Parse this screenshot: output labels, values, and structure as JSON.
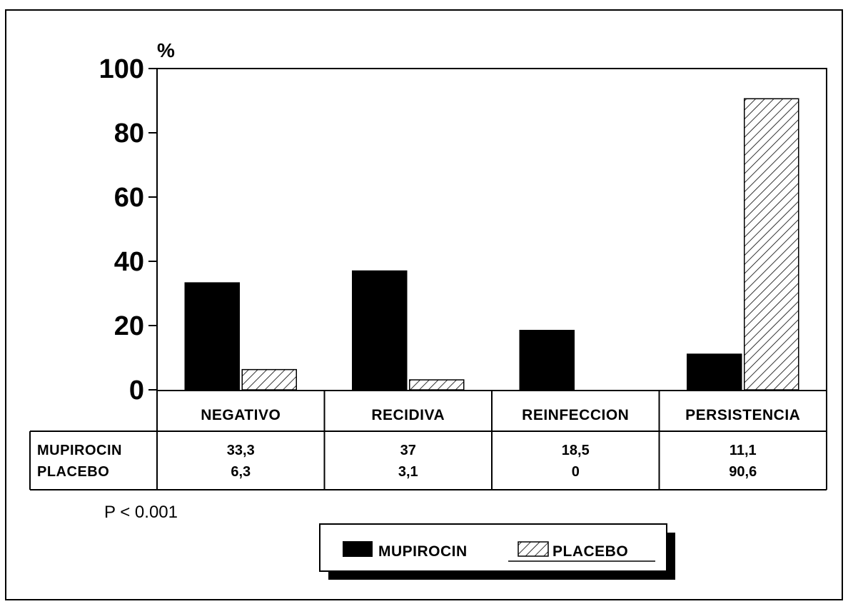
{
  "chart_data": {
    "type": "bar",
    "y_unit": "%",
    "ylim": [
      0,
      100
    ],
    "yticks": [
      "0",
      "20",
      "40",
      "60",
      "80",
      "100"
    ],
    "categories": [
      "NEGATIVO",
      "RECIDIVA",
      "REINFECCION",
      "PERSISTENCIA"
    ],
    "series": [
      {
        "name": "MUPIROCIN",
        "values": [
          33.3,
          37,
          18.5,
          11.1
        ],
        "labels": [
          "33,3",
          "37",
          "18,5",
          "11,1"
        ],
        "fill": "solid-black"
      },
      {
        "name": "PLACEBO",
        "values": [
          6.3,
          3.1,
          0,
          90.6
        ],
        "labels": [
          "6,3",
          "3,1",
          "0",
          "90,6"
        ],
        "fill": "diagonal-hatch"
      }
    ],
    "grid": false,
    "legend_position": "bottom-center",
    "annotation": "P < 0.001"
  },
  "colors": {
    "bar_solid": "#000000",
    "hatch": "#000000",
    "background": "#ffffff"
  }
}
